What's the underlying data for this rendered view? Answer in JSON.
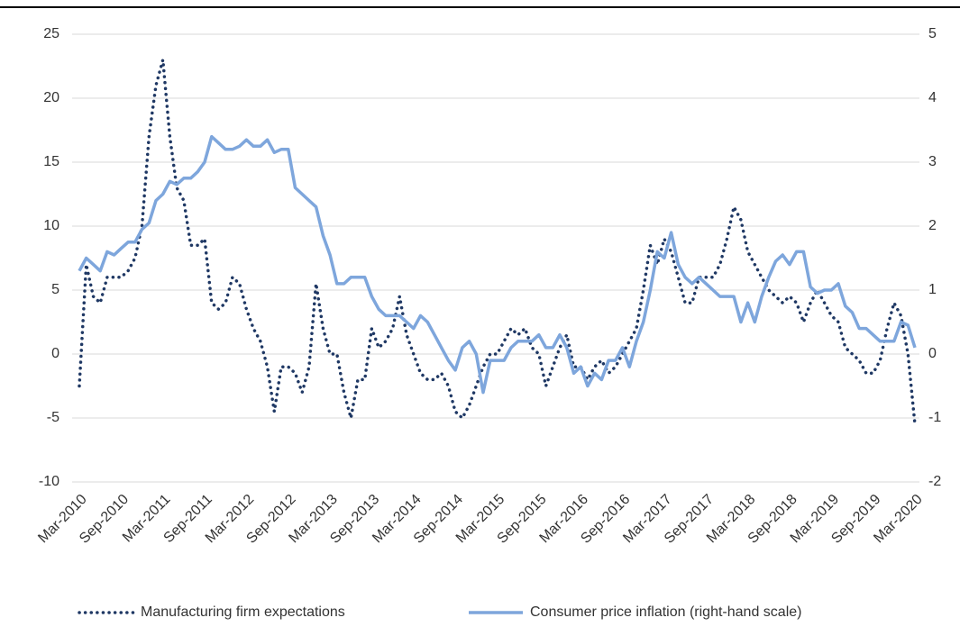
{
  "chart_data": {
    "type": "line",
    "categories": [
      "Mar-2010",
      null,
      null,
      null,
      null,
      null,
      "Sep-2010",
      null,
      null,
      null,
      null,
      null,
      "Mar-2011",
      null,
      null,
      null,
      null,
      null,
      "Sep-2011",
      null,
      null,
      null,
      null,
      null,
      "Mar-2012",
      null,
      null,
      null,
      null,
      null,
      "Sep-2012",
      null,
      null,
      null,
      null,
      null,
      "Mar-2013",
      null,
      null,
      null,
      null,
      null,
      "Sep-2013",
      null,
      null,
      null,
      null,
      null,
      "Mar-2014",
      null,
      null,
      null,
      null,
      null,
      "Sep-2014",
      null,
      null,
      null,
      null,
      null,
      "Mar-2015",
      null,
      null,
      null,
      null,
      null,
      "Sep-2015",
      null,
      null,
      null,
      null,
      null,
      "Mar-2016",
      null,
      null,
      null,
      null,
      null,
      "Sep-2016",
      null,
      null,
      null,
      null,
      null,
      "Mar-2017",
      null,
      null,
      null,
      null,
      null,
      "Sep-2017",
      null,
      null,
      null,
      null,
      null,
      "Mar-2018",
      null,
      null,
      null,
      null,
      null,
      "Sep-2018",
      null,
      null,
      null,
      null,
      null,
      "Mar-2019",
      null,
      null,
      null,
      null,
      null,
      "Sep-2019",
      null,
      null,
      null,
      null,
      null,
      "Mar-2020"
    ],
    "series": [
      {
        "name": "Manufacturing firm expectations",
        "color": "#1f3864",
        "style": "dotted",
        "axis": "y",
        "values": [
          -2.5,
          7,
          4.5,
          4,
          6,
          6,
          6,
          6.5,
          7.5,
          10,
          17,
          21,
          23,
          17,
          13,
          12,
          8.5,
          8.5,
          9,
          4,
          3.5,
          4,
          6,
          5.5,
          3.5,
          2,
          1,
          -1,
          -4.5,
          -1,
          -1,
          -1.5,
          -3,
          -1,
          5.5,
          2,
          0,
          0,
          -3,
          -5,
          -2,
          -2,
          2,
          0.5,
          1,
          2,
          4.5,
          1.5,
          0,
          -1.5,
          -2,
          -2,
          -1.5,
          -2.5,
          -4.5,
          -5,
          -4,
          -2.5,
          -1,
          0,
          0,
          1,
          2,
          1.5,
          2,
          0.5,
          0,
          -2.5,
          -1,
          0.5,
          1.5,
          -1,
          -1,
          -2,
          -1,
          -0.5,
          -1.5,
          -1,
          0,
          1,
          2,
          5,
          8.5,
          7,
          9,
          8,
          6,
          4,
          4,
          6,
          6,
          6,
          7,
          9,
          11.5,
          10.5,
          8,
          7,
          6,
          5,
          4.5,
          4,
          4.5,
          4,
          2.5,
          4,
          5,
          4,
          3,
          2.5,
          0.5,
          0,
          -0.5,
          -1.5,
          -1.5,
          -0.5,
          2,
          4,
          3,
          0,
          -5.5
        ]
      },
      {
        "name": "Consumer price inflation (right-hand scale)",
        "color": "#7ea6dc",
        "style": "solid",
        "axis": "y2",
        "values": [
          1.3,
          1.5,
          1.4,
          1.3,
          1.6,
          1.55,
          1.65,
          1.75,
          1.75,
          1.95,
          2.05,
          2.4,
          2.5,
          2.7,
          2.65,
          2.75,
          2.75,
          2.85,
          3.0,
          3.4,
          3.3,
          3.2,
          3.2,
          3.25,
          3.35,
          3.25,
          3.25,
          3.35,
          3.15,
          3.2,
          3.2,
          2.6,
          2.5,
          2.4,
          2.3,
          1.85,
          1.55,
          1.1,
          1.1,
          1.2,
          1.2,
          1.2,
          0.9,
          0.7,
          0.6,
          0.6,
          0.6,
          0.5,
          0.4,
          0.6,
          0.5,
          0.3,
          0.1,
          -0.1,
          -0.25,
          0.1,
          0.2,
          0,
          -0.6,
          -0.1,
          -0.1,
          -0.1,
          0.1,
          0.2,
          0.2,
          0.2,
          0.3,
          0.1,
          0.1,
          0.3,
          0.1,
          -0.3,
          -0.2,
          -0.5,
          -0.3,
          -0.4,
          -0.1,
          -0.1,
          0.1,
          -0.2,
          0.2,
          0.5,
          1.0,
          1.6,
          1.5,
          1.9,
          1.4,
          1.2,
          1.1,
          1.2,
          1.1,
          1.0,
          0.9,
          0.9,
          0.9,
          0.5,
          0.8,
          0.5,
          0.9,
          1.2,
          1.45,
          1.55,
          1.4,
          1.6,
          1.6,
          1.05,
          0.95,
          1.0,
          1.0,
          1.1,
          0.75,
          0.65,
          0.4,
          0.4,
          0.3,
          0.2,
          0.2,
          0.2,
          0.5,
          0.45,
          0.1
        ]
      }
    ],
    "ylim": [
      -10,
      25
    ],
    "yticks": [
      -10,
      -5,
      0,
      5,
      10,
      15,
      20,
      25
    ],
    "y2lim": [
      -2,
      5
    ],
    "y2ticks": [
      -2,
      -1,
      0,
      1,
      2,
      3,
      4,
      5
    ],
    "grid": true,
    "legend": "bottom"
  }
}
